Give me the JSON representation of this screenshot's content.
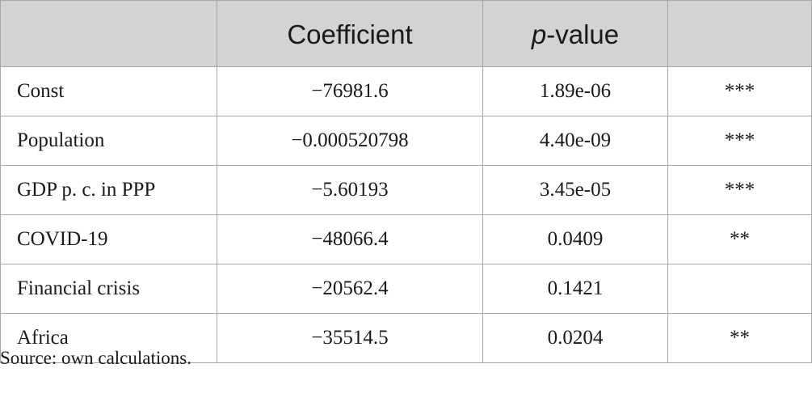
{
  "table": {
    "headers": {
      "variable": "",
      "coefficient": "Coefficient",
      "pvalue_italic": "p",
      "pvalue_rest": "-value",
      "significance": ""
    },
    "rows": [
      {
        "variable": "Const",
        "coefficient": "−76981.6",
        "pvalue": "1.89e-06",
        "significance": "***"
      },
      {
        "variable": "Population",
        "coefficient": "−0.000520798",
        "pvalue": "4.40e-09",
        "significance": "***"
      },
      {
        "variable": "GDP p. c. in PPP",
        "coefficient": "−5.60193",
        "pvalue": "3.45e-05",
        "significance": "***"
      },
      {
        "variable": "COVID-19",
        "coefficient": "−48066.4",
        "pvalue": "0.0409",
        "significance": "**"
      },
      {
        "variable": "Financial crisis",
        "coefficient": "−20562.4",
        "pvalue": "0.1421",
        "significance": ""
      },
      {
        "variable": "Africa",
        "coefficient": "−35514.5",
        "pvalue": "0.0204",
        "significance": "**"
      }
    ]
  },
  "source_note": "Source: own calculations.",
  "colors": {
    "header_background": "#d3d3d3",
    "border": "#a8a8a8",
    "text": "#1a1a1a"
  }
}
